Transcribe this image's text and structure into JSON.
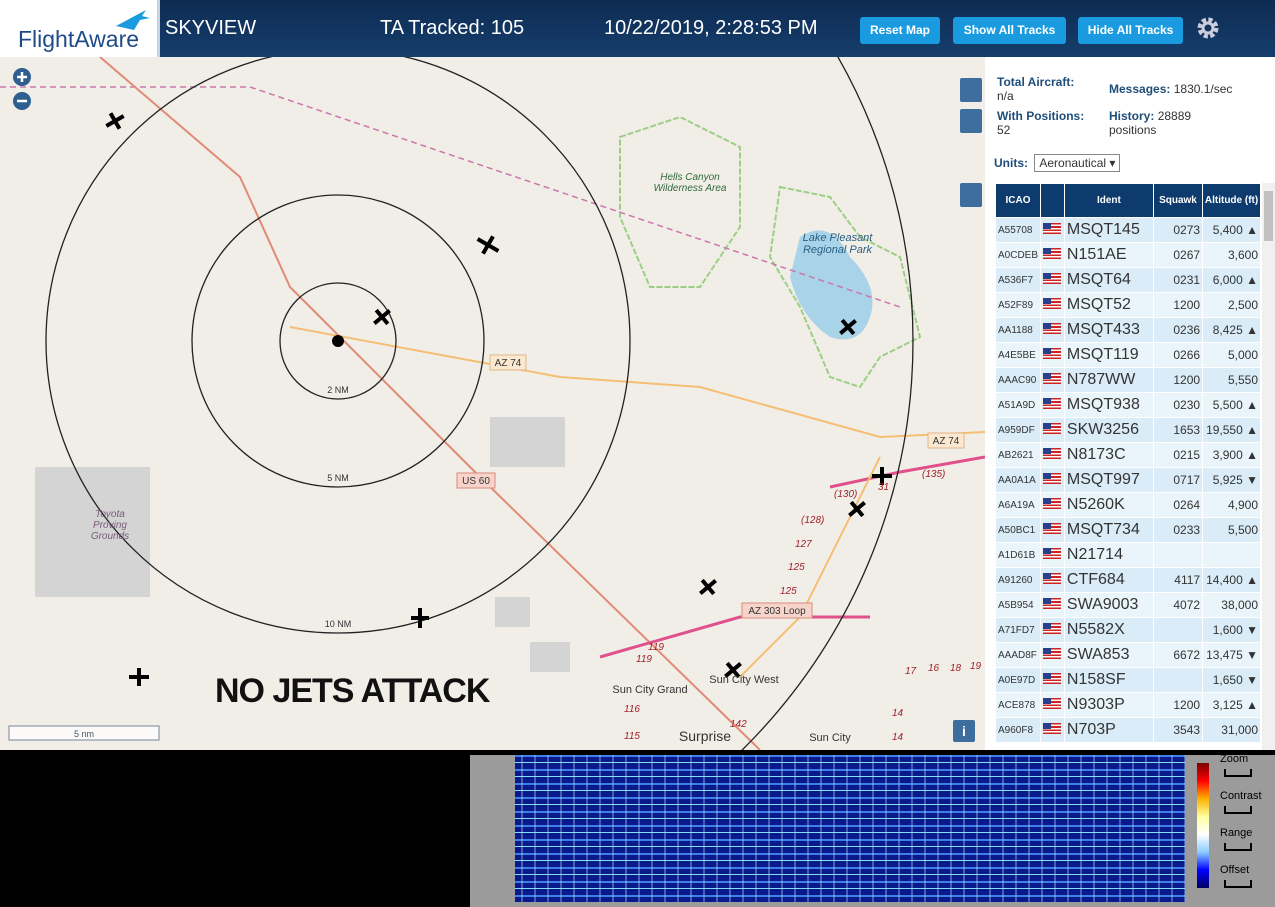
{
  "header": {
    "logo": "FlightAware",
    "app": "SKYVIEW",
    "tracked": "TA Tracked: 105",
    "datetime": "10/22/2019, 2:28:53 PM",
    "buttons": [
      "Reset Map",
      "Show All Tracks",
      "Hide All Tracks"
    ]
  },
  "map": {
    "labels": {
      "park1": "Hells Canyon Wilderness Area",
      "park2": "Lake Pleasant Regional Park",
      "road1": "AZ 74",
      "road2": "AZ 74",
      "road3": "US 60",
      "road4": "AZ 303 Loop",
      "ring1": "2 NM",
      "ring2": "5 NM",
      "ring3": "10 NM",
      "proving": "Toyota Proving Grounds",
      "city1": "Sun City Grand",
      "city2": "Sun City West",
      "city3": "Surprise",
      "city4": "Sun City",
      "scale": "5 nm",
      "info": "i"
    },
    "routes": [
      "(130)",
      "(128)",
      "127",
      "125",
      "125",
      "(135)",
      "119",
      "119",
      "116",
      "115",
      "142",
      "17",
      "16",
      "18",
      "19",
      "14",
      "14",
      "31"
    ],
    "overlay": "NO JETS ATTACK"
  },
  "sidebar": {
    "total_label": "Total Aircraft:",
    "total": "n/a",
    "messages_label": "Messages:",
    "messages": "1830.1/sec",
    "positions_label": "With Positions:",
    "positions": "52",
    "history_label": "History:",
    "history": "28889 positions",
    "units_label": "Units:",
    "units": "Aeronautical"
  },
  "table": {
    "headers": [
      "ICAO",
      "Ident",
      "Squawk",
      "Altitude (ft)"
    ],
    "rows": [
      {
        "icao": "A55708",
        "ident": "MSQT145",
        "squawk": "0273",
        "altitude": "5,400",
        "trend": "▲"
      },
      {
        "icao": "A0CDEB",
        "ident": "N151AE",
        "squawk": "0267",
        "altitude": "3,600"
      },
      {
        "icao": "A536F7",
        "ident": "MSQT64",
        "squawk": "0231",
        "altitude": "6,000",
        "trend": "▲"
      },
      {
        "icao": "A52F89",
        "ident": "MSQT52",
        "squawk": "1200",
        "altitude": "2,500"
      },
      {
        "icao": "AA1188",
        "ident": "MSQT433",
        "squawk": "0236",
        "altitude": "8,425",
        "trend": "▲"
      },
      {
        "icao": "A4E5BE",
        "ident": "MSQT119",
        "squawk": "0266",
        "altitude": "5,000"
      },
      {
        "icao": "AAAC90",
        "ident": "N787WW",
        "squawk": "1200",
        "altitude": "5,550"
      },
      {
        "icao": "A51A9D",
        "ident": "MSQT938",
        "squawk": "0230",
        "altitude": "5,500",
        "trend": "▲"
      },
      {
        "icao": "A959DF",
        "ident": "SKW3256",
        "squawk": "1653",
        "altitude": "19,550",
        "trend": "▲"
      },
      {
        "icao": "AB2621",
        "ident": "N8173C",
        "squawk": "0215",
        "altitude": "3,900",
        "trend": "▲"
      },
      {
        "icao": "AA0A1A",
        "ident": "MSQT997",
        "squawk": "0717",
        "altitude": "5,925",
        "trend": "▼"
      },
      {
        "icao": "A6A19A",
        "ident": "N5260K",
        "squawk": "0264",
        "altitude": "4,900"
      },
      {
        "icao": "A50BC1",
        "ident": "MSQT734",
        "squawk": "0233",
        "altitude": "5,500"
      },
      {
        "icao": "A1D61B",
        "ident": "N21714"
      },
      {
        "icao": "A91260",
        "ident": "CTF684",
        "squawk": "4117",
        "altitude": "14,400",
        "trend": "▲"
      },
      {
        "icao": "A5B954",
        "ident": "SWA9003",
        "squawk": "4072",
        "altitude": "38,000"
      },
      {
        "icao": "A71FD7",
        "ident": "N5582X",
        "altitude": "1,600",
        "trend": "▼"
      },
      {
        "icao": "AAAD8F",
        "ident": "SWA853",
        "squawk": "6672",
        "altitude": "13,475",
        "trend": "▼"
      },
      {
        "icao": "A0E97D",
        "ident": "N158SF",
        "altitude": "1,650",
        "trend": "▼"
      },
      {
        "icao": "ACE878",
        "ident": "N9303P",
        "squawk": "1200",
        "altitude": "3,125",
        "trend": "▲"
      },
      {
        "icao": "A960F8",
        "ident": "N703P",
        "squawk": "3543",
        "altitude": "31,000"
      }
    ]
  },
  "spectrum": {
    "controls": [
      "Zoom",
      "Contrast",
      "Range",
      "Offset"
    ]
  }
}
